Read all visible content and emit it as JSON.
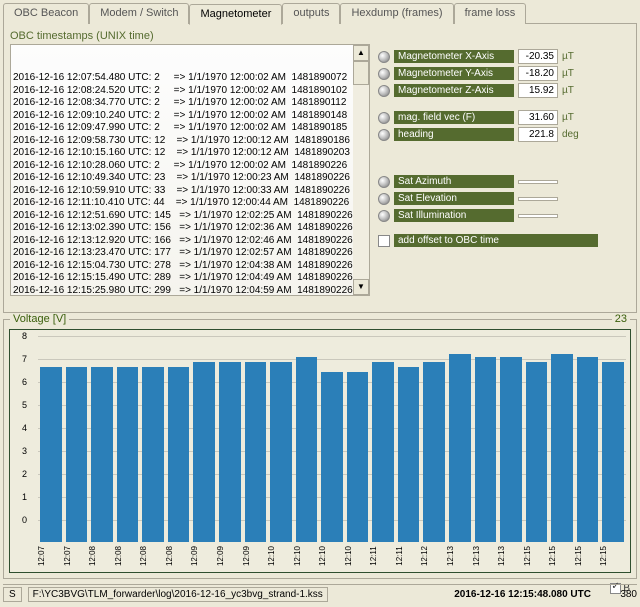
{
  "tabs": {
    "items": [
      {
        "label": "OBC Beacon"
      },
      {
        "label": "Modem / Switch"
      },
      {
        "label": "Magnetometer"
      },
      {
        "label": "outputs"
      },
      {
        "label": "Hexdump (frames)"
      },
      {
        "label": "frame loss"
      }
    ],
    "active_index": 2
  },
  "timestamps": {
    "caption": "OBC timestamps (UNIX time)",
    "rows": [
      "2016-12-16 12:07:54.480 UTC: 2     => 1/1/1970 12:00:02 AM  1481890072",
      "2016-12-16 12:08:24.520 UTC: 2     => 1/1/1970 12:00:02 AM  1481890102",
      "2016-12-16 12:08:34.770 UTC: 2     => 1/1/1970 12:00:02 AM  1481890112",
      "2016-12-16 12:09:10.240 UTC: 2     => 1/1/1970 12:00:02 AM  1481890148",
      "2016-12-16 12:09:47.990 UTC: 2     => 1/1/1970 12:00:02 AM  1481890185",
      "2016-12-16 12:09:58.730 UTC: 12    => 1/1/1970 12:00:12 AM  1481890186",
      "2016-12-16 12:10:15.160 UTC: 12    => 1/1/1970 12:00:12 AM  1481890203",
      "2016-12-16 12:10:28.060 UTC: 2     => 1/1/1970 12:00:02 AM  1481890226",
      "2016-12-16 12:10:49.340 UTC: 23    => 1/1/1970 12:00:23 AM  1481890226",
      "2016-12-16 12:10:59.910 UTC: 33    => 1/1/1970 12:00:33 AM  1481890226",
      "2016-12-16 12:11:10.410 UTC: 44    => 1/1/1970 12:00:44 AM  1481890226",
      "2016-12-16 12:12:51.690 UTC: 145   => 1/1/1970 12:02:25 AM  1481890226",
      "2016-12-16 12:13:02.390 UTC: 156   => 1/1/1970 12:02:36 AM  1481890226",
      "2016-12-16 12:13:12.920 UTC: 166   => 1/1/1970 12:02:46 AM  1481890226",
      "2016-12-16 12:13:23.470 UTC: 177   => 1/1/1970 12:02:57 AM  1481890226",
      "2016-12-16 12:15:04.730 UTC: 278   => 1/1/1970 12:04:38 AM  1481890226",
      "2016-12-16 12:15:15.490 UTC: 289   => 1/1/1970 12:04:49 AM  1481890226",
      "2016-12-16 12:15:25.980 UTC: 299   => 1/1/1970 12:04:59 AM  1481890226"
    ]
  },
  "readouts": {
    "mag_x": {
      "label": "Magnetometer X-Axis",
      "value": "-20.35",
      "unit": "µT"
    },
    "mag_y": {
      "label": "Magnetometer Y-Axis",
      "value": "-18.20",
      "unit": "µT"
    },
    "mag_z": {
      "label": "Magnetometer Z-Axis",
      "value": "15.92",
      "unit": "µT"
    },
    "field": {
      "label": "mag. field vec (F)",
      "value": "31.60",
      "unit": "µT"
    },
    "heading": {
      "label": "heading",
      "value": "221.8",
      "unit": "deg"
    },
    "azimuth": {
      "label": "Sat Azimuth",
      "value": "",
      "unit": ""
    },
    "elevation": {
      "label": "Sat Elevation",
      "value": "",
      "unit": ""
    },
    "illum": {
      "label": "Sat Illumination",
      "value": "",
      "unit": ""
    },
    "offset_label": "add offset to OBC time"
  },
  "chart": {
    "type": "bar",
    "title": "Voltage [V]",
    "count": "23",
    "ylim": [
      0,
      8
    ],
    "ytick_step": 1,
    "background_color": "#eeecdd",
    "bar_color": "#2b7fb8",
    "categories": [
      "12:07",
      "12:07",
      "12:08",
      "12:08",
      "12:08",
      "12:08",
      "12:09",
      "12:09",
      "12:09",
      "12:10",
      "12:10",
      "12:10",
      "12:10",
      "12:11",
      "12:11",
      "12:12",
      "12:13",
      "12:13",
      "12:13",
      "12:15",
      "12:15",
      "12:15",
      "12:15"
    ],
    "values": [
      6.8,
      6.8,
      6.8,
      6.8,
      6.8,
      6.8,
      7.0,
      7.0,
      7.0,
      7.0,
      7.2,
      6.6,
      6.6,
      7.0,
      6.8,
      7.0,
      7.3,
      7.2,
      7.2,
      7.0,
      7.3,
      7.2,
      7.0
    ],
    "b_checked": true,
    "b_label": "B"
  },
  "statusbar": {
    "btn": "S",
    "path": "F:\\YC3BVG\\TLM_forwarder\\log\\2016-12-16_yc3bvg_strand-1.kss",
    "time": "2016-12-16 12:15:48.080 UTC",
    "num": "380"
  },
  "colors": {
    "olive": "#556b2f",
    "panel": "#ece9d8"
  }
}
